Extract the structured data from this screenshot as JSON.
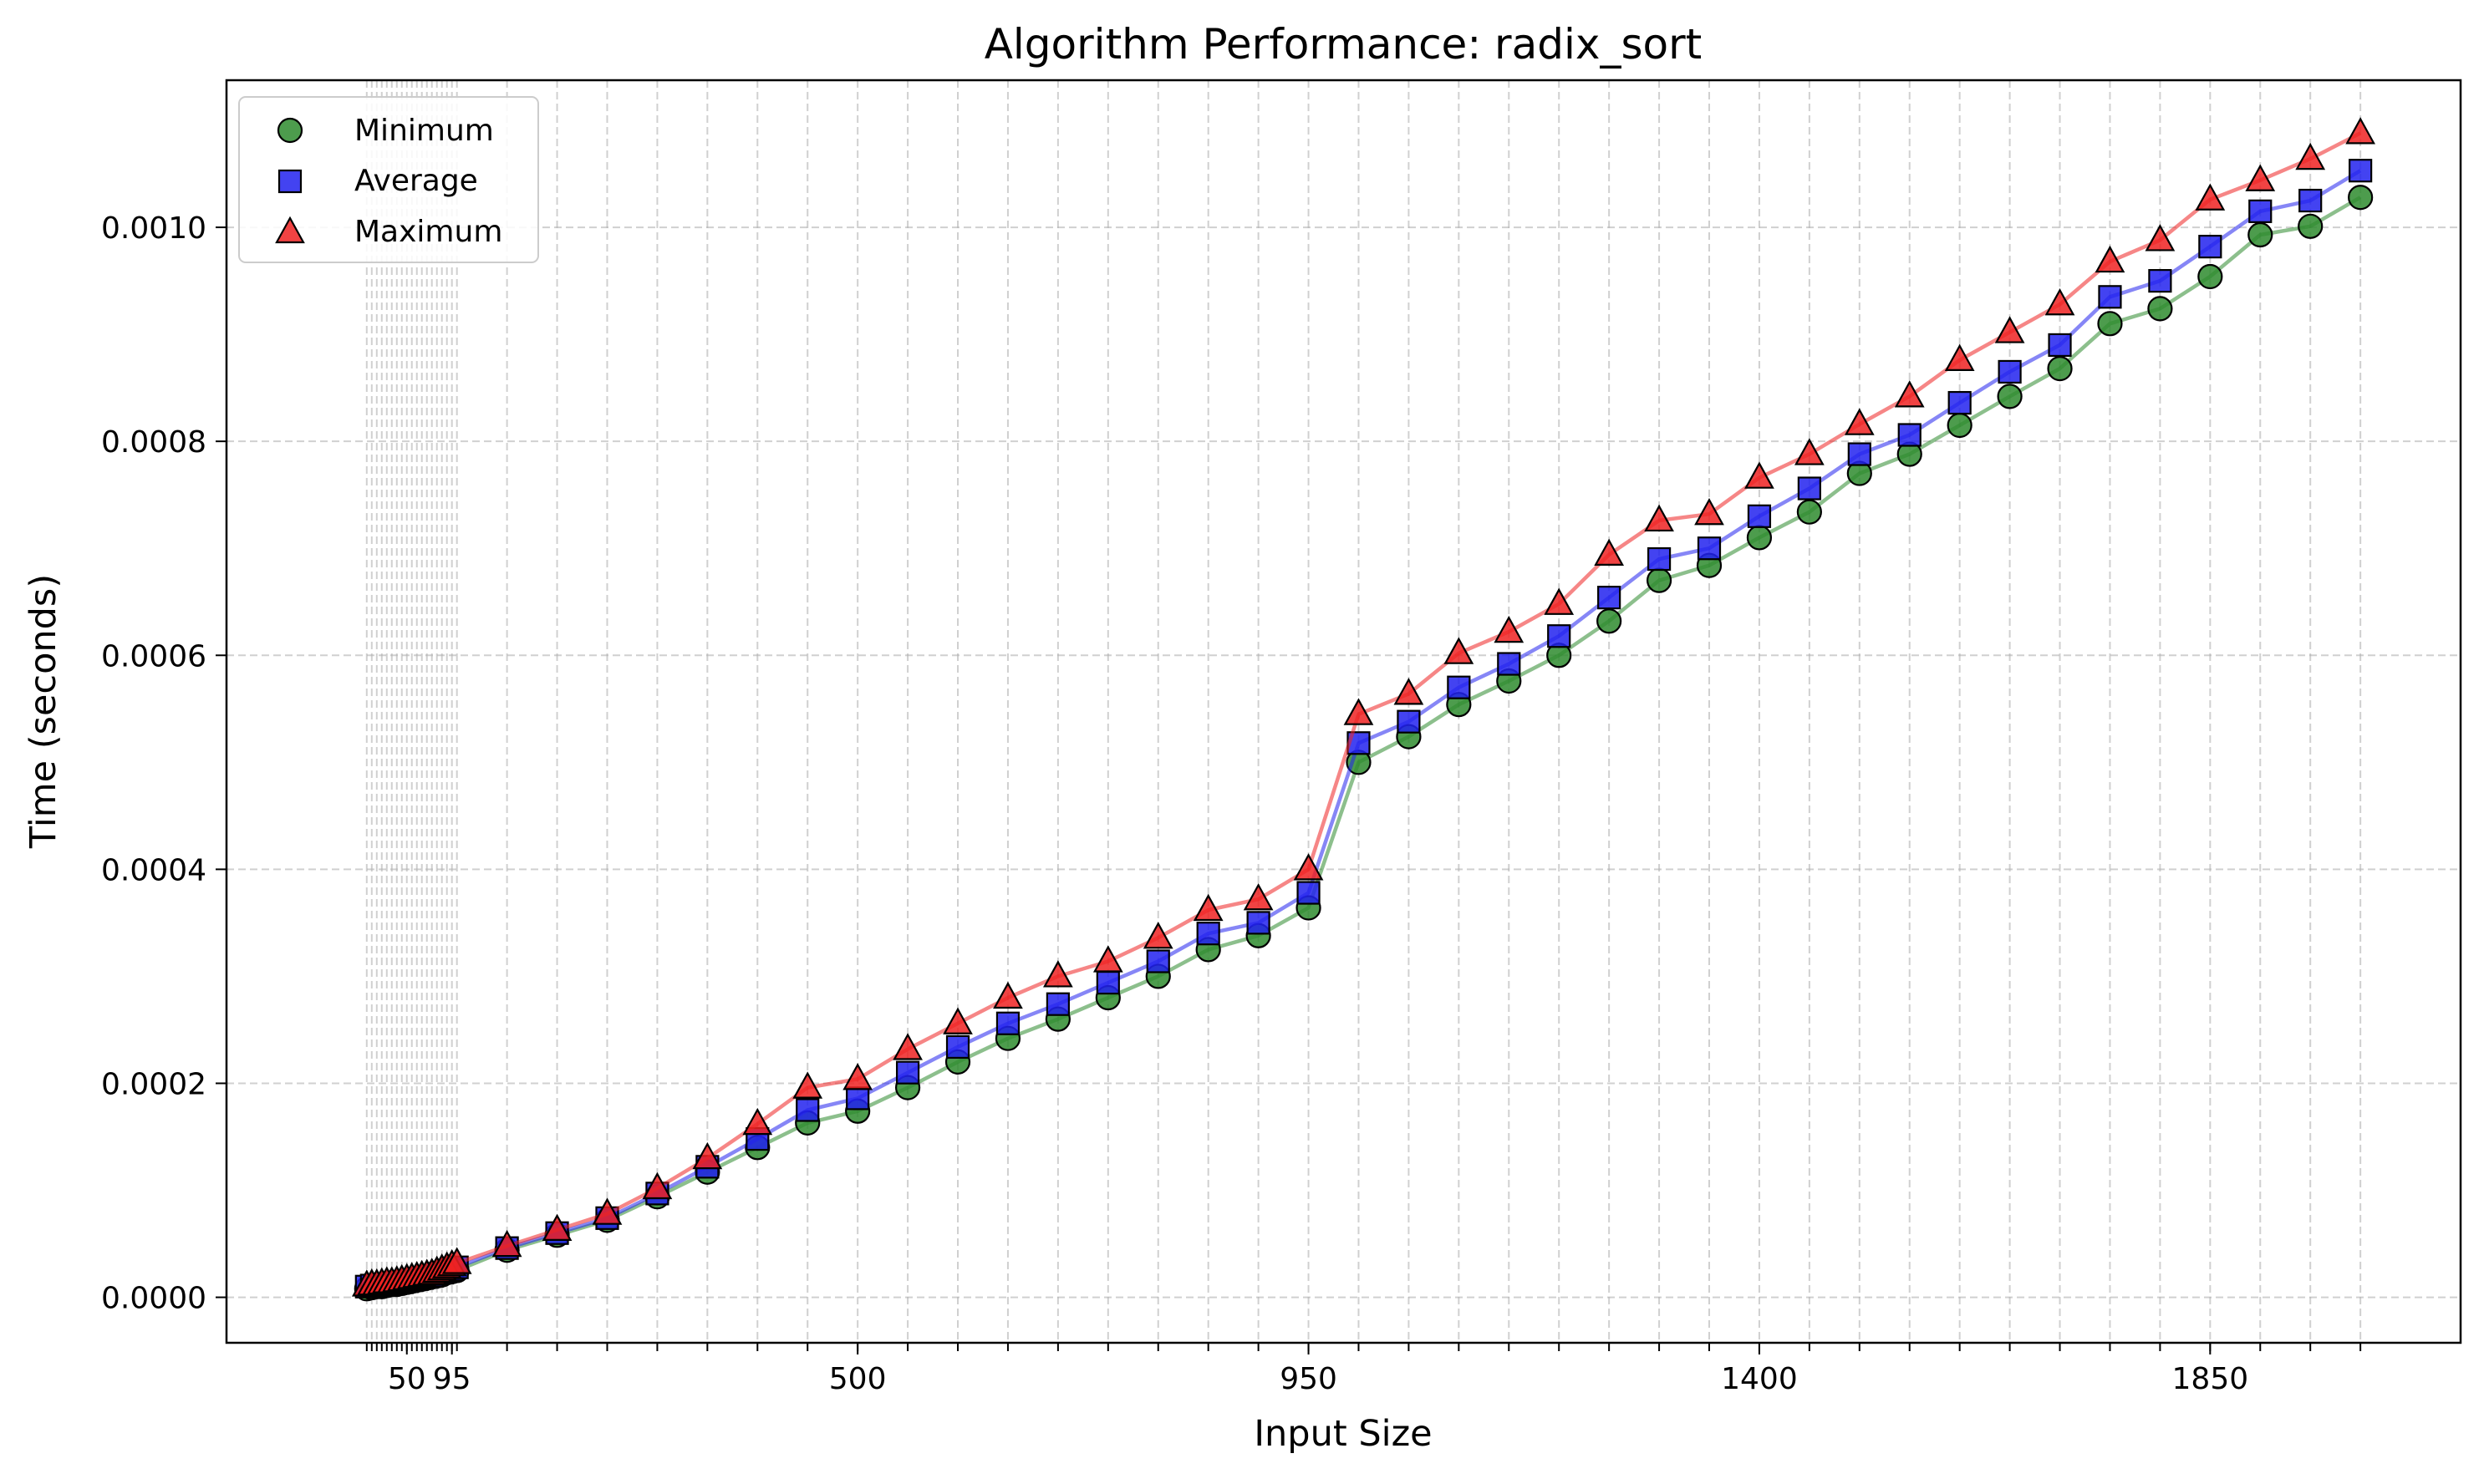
{
  "chart_data": {
    "type": "line",
    "title": "Algorithm Performance: radix_sort",
    "xlabel": "Input Size",
    "ylabel": "Time (seconds)",
    "x": [
      10,
      15,
      20,
      25,
      30,
      35,
      40,
      45,
      50,
      55,
      60,
      65,
      70,
      75,
      80,
      85,
      90,
      95,
      100,
      150,
      200,
      250,
      300,
      350,
      400,
      450,
      500,
      550,
      600,
      650,
      700,
      750,
      800,
      850,
      900,
      950,
      1000,
      1050,
      1100,
      1150,
      1200,
      1250,
      1300,
      1350,
      1400,
      1450,
      1500,
      1550,
      1600,
      1650,
      1700,
      1750,
      1800,
      1850,
      1900,
      1950,
      2000
    ],
    "series": [
      {
        "name": "Minimum",
        "color": "#2e8b2e",
        "marker": "circle",
        "values": [
          8e-06,
          9e-06,
          1e-05,
          1e-05,
          1.1e-05,
          1.2e-05,
          1.2e-05,
          1.3e-05,
          1.4e-05,
          1.5e-05,
          1.6e-05,
          1.7e-05,
          1.8e-05,
          1.9e-05,
          2e-05,
          2.1e-05,
          2.3e-05,
          2.4e-05,
          2.5e-05,
          4.4e-05,
          5.8e-05,
          7.2e-05,
          9.4e-05,
          0.000117,
          0.00014,
          0.000163,
          0.000174,
          0.000196,
          0.00022,
          0.000242,
          0.00026,
          0.00028,
          0.0003,
          0.000325,
          0.000338,
          0.000364,
          0.0005,
          0.000524,
          0.000554,
          0.000576,
          0.0006,
          0.000632,
          0.00067,
          0.000684,
          0.00071,
          0.000734,
          0.00077,
          0.000788,
          0.000815,
          0.000842,
          0.000868,
          0.00091,
          0.000924,
          0.000954,
          0.000993,
          0.001001,
          0.001028
        ]
      },
      {
        "name": "Average",
        "color": "#2222ee",
        "marker": "square",
        "values": [
          1e-05,
          1.1e-05,
          1.1e-05,
          1.2e-05,
          1.2e-05,
          1.3e-05,
          1.4e-05,
          1.4e-05,
          1.5e-05,
          1.6e-05,
          1.7e-05,
          1.8e-05,
          1.9e-05,
          2e-05,
          2.2e-05,
          2.3e-05,
          2.5e-05,
          2.6e-05,
          2.8e-05,
          4.6e-05,
          6e-05,
          7.4e-05,
          9.7e-05,
          0.000122,
          0.000148,
          0.000175,
          0.000186,
          0.00021,
          0.000234,
          0.000256,
          0.000274,
          0.000294,
          0.000314,
          0.00034,
          0.00035,
          0.000378,
          0.000518,
          0.000538,
          0.00057,
          0.000592,
          0.000618,
          0.000654,
          0.00069,
          0.0007,
          0.00073,
          0.000756,
          0.000788,
          0.000806,
          0.000836,
          0.000865,
          0.00089,
          0.000935,
          0.00095,
          0.000982,
          0.001015,
          0.001025,
          0.001053
        ]
      },
      {
        "name": "Maximum",
        "color": "#ee2222",
        "marker": "triangle",
        "values": [
          1.1e-05,
          1.2e-05,
          1.2e-05,
          1.3e-05,
          1.4e-05,
          1.4e-05,
          1.5e-05,
          1.6e-05,
          1.7e-05,
          1.8e-05,
          1.9e-05,
          2e-05,
          2.1e-05,
          2.2e-05,
          2.4e-05,
          2.6e-05,
          2.8e-05,
          3e-05,
          3.2e-05,
          4.8e-05,
          6.3e-05,
          7.8e-05,
          0.000102,
          0.00013,
          0.000162,
          0.000196,
          0.000204,
          0.000232,
          0.000256,
          0.00028,
          0.0003,
          0.000314,
          0.000336,
          0.000362,
          0.000372,
          0.0004,
          0.000545,
          0.000564,
          0.000602,
          0.000622,
          0.000648,
          0.000694,
          0.000726,
          0.000732,
          0.000766,
          0.000788,
          0.000816,
          0.000842,
          0.000876,
          0.000902,
          0.000928,
          0.000968,
          0.000988,
          0.001026,
          0.001044,
          0.001064,
          0.001088
        ]
      }
    ],
    "xticks": [
      50,
      95,
      500,
      950,
      1400,
      1850
    ],
    "xtick_labels": [
      "50",
      "95",
      "500",
      "950",
      "1400",
      "1850"
    ],
    "xlim": [
      -130,
      2100
    ],
    "yticks": [
      0,
      0.0002,
      0.0004,
      0.0006,
      0.0008,
      0.001
    ],
    "ytick_labels": [
      "0.0000",
      "0.0002",
      "0.0004",
      "0.0006",
      "0.0008",
      "0.0010"
    ],
    "ylim": [
      -4.25e-05,
      0.0011375
    ],
    "grid": true,
    "legend_position": "top-left"
  }
}
